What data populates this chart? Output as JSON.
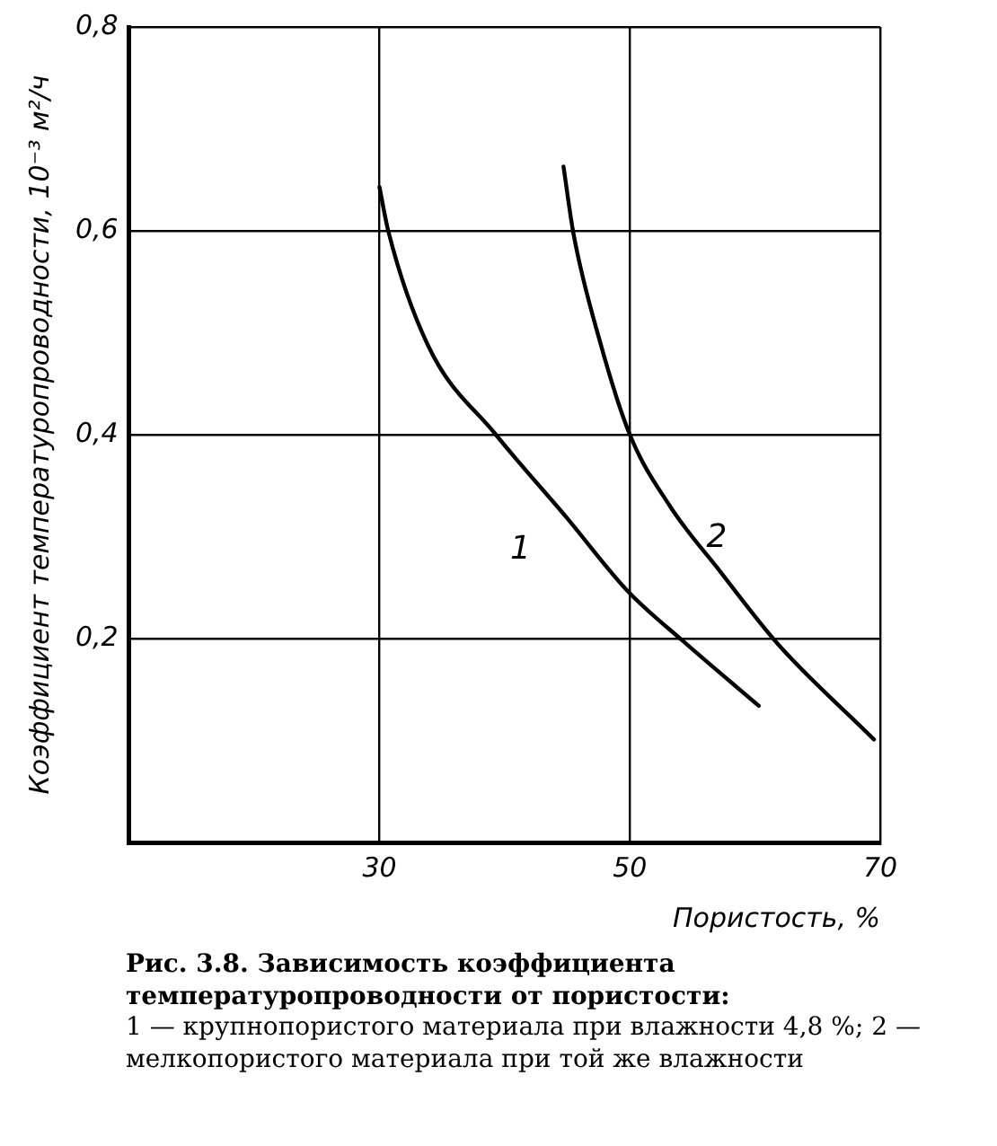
{
  "chart_data": {
    "type": "line",
    "title": "Рис. 3.8. Зависимость коэффициента температуропроводности от пористости:",
    "xlabel": "Пористость, %",
    "ylabel": "Коэффициент температуропроводности, 10⁻³ м²/ч",
    "xlim": [
      10,
      70
    ],
    "xticks": [
      30,
      50,
      70
    ],
    "ylim": [
      0,
      0.8
    ],
    "yticks": [
      {
        "value": 0.2,
        "label": "0,2"
      },
      {
        "value": 0.4,
        "label": "0,4"
      },
      {
        "value": 0.6,
        "label": "0,6"
      },
      {
        "value": 0.8,
        "label": "0,8"
      }
    ],
    "grid": true,
    "legend": false,
    "marker": "none",
    "line_style": "solid",
    "series": [
      {
        "name": "1",
        "color": "#000000",
        "x": [
          30,
          30.7,
          33.9,
          39.3,
          45,
          49.8,
          54.3,
          60.3
        ],
        "values": [
          0.643,
          0.6,
          0.487,
          0.4,
          0.318,
          0.247,
          0.197,
          0.134
        ]
      },
      {
        "name": "2",
        "color": "#000000",
        "x": [
          44.7,
          45.5,
          47.6,
          50,
          53.2,
          57.2,
          61.8,
          69.5
        ],
        "values": [
          0.663,
          0.597,
          0.492,
          0.4,
          0.33,
          0.266,
          0.195,
          0.101
        ]
      }
    ],
    "annotations": [
      "1 — крупнопористого материала при влажности 4,8 %; 2 — мелкопористого материала при той же влажности"
    ]
  }
}
